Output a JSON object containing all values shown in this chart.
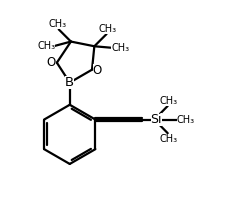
{
  "bg_color": "#ffffff",
  "line_color": "#000000",
  "line_width": 1.6,
  "font_size": 8.5,
  "figsize": [
    2.48,
    2.12
  ],
  "dpi": 100,
  "xlim": [
    0,
    10
  ],
  "ylim": [
    0,
    8.5
  ]
}
